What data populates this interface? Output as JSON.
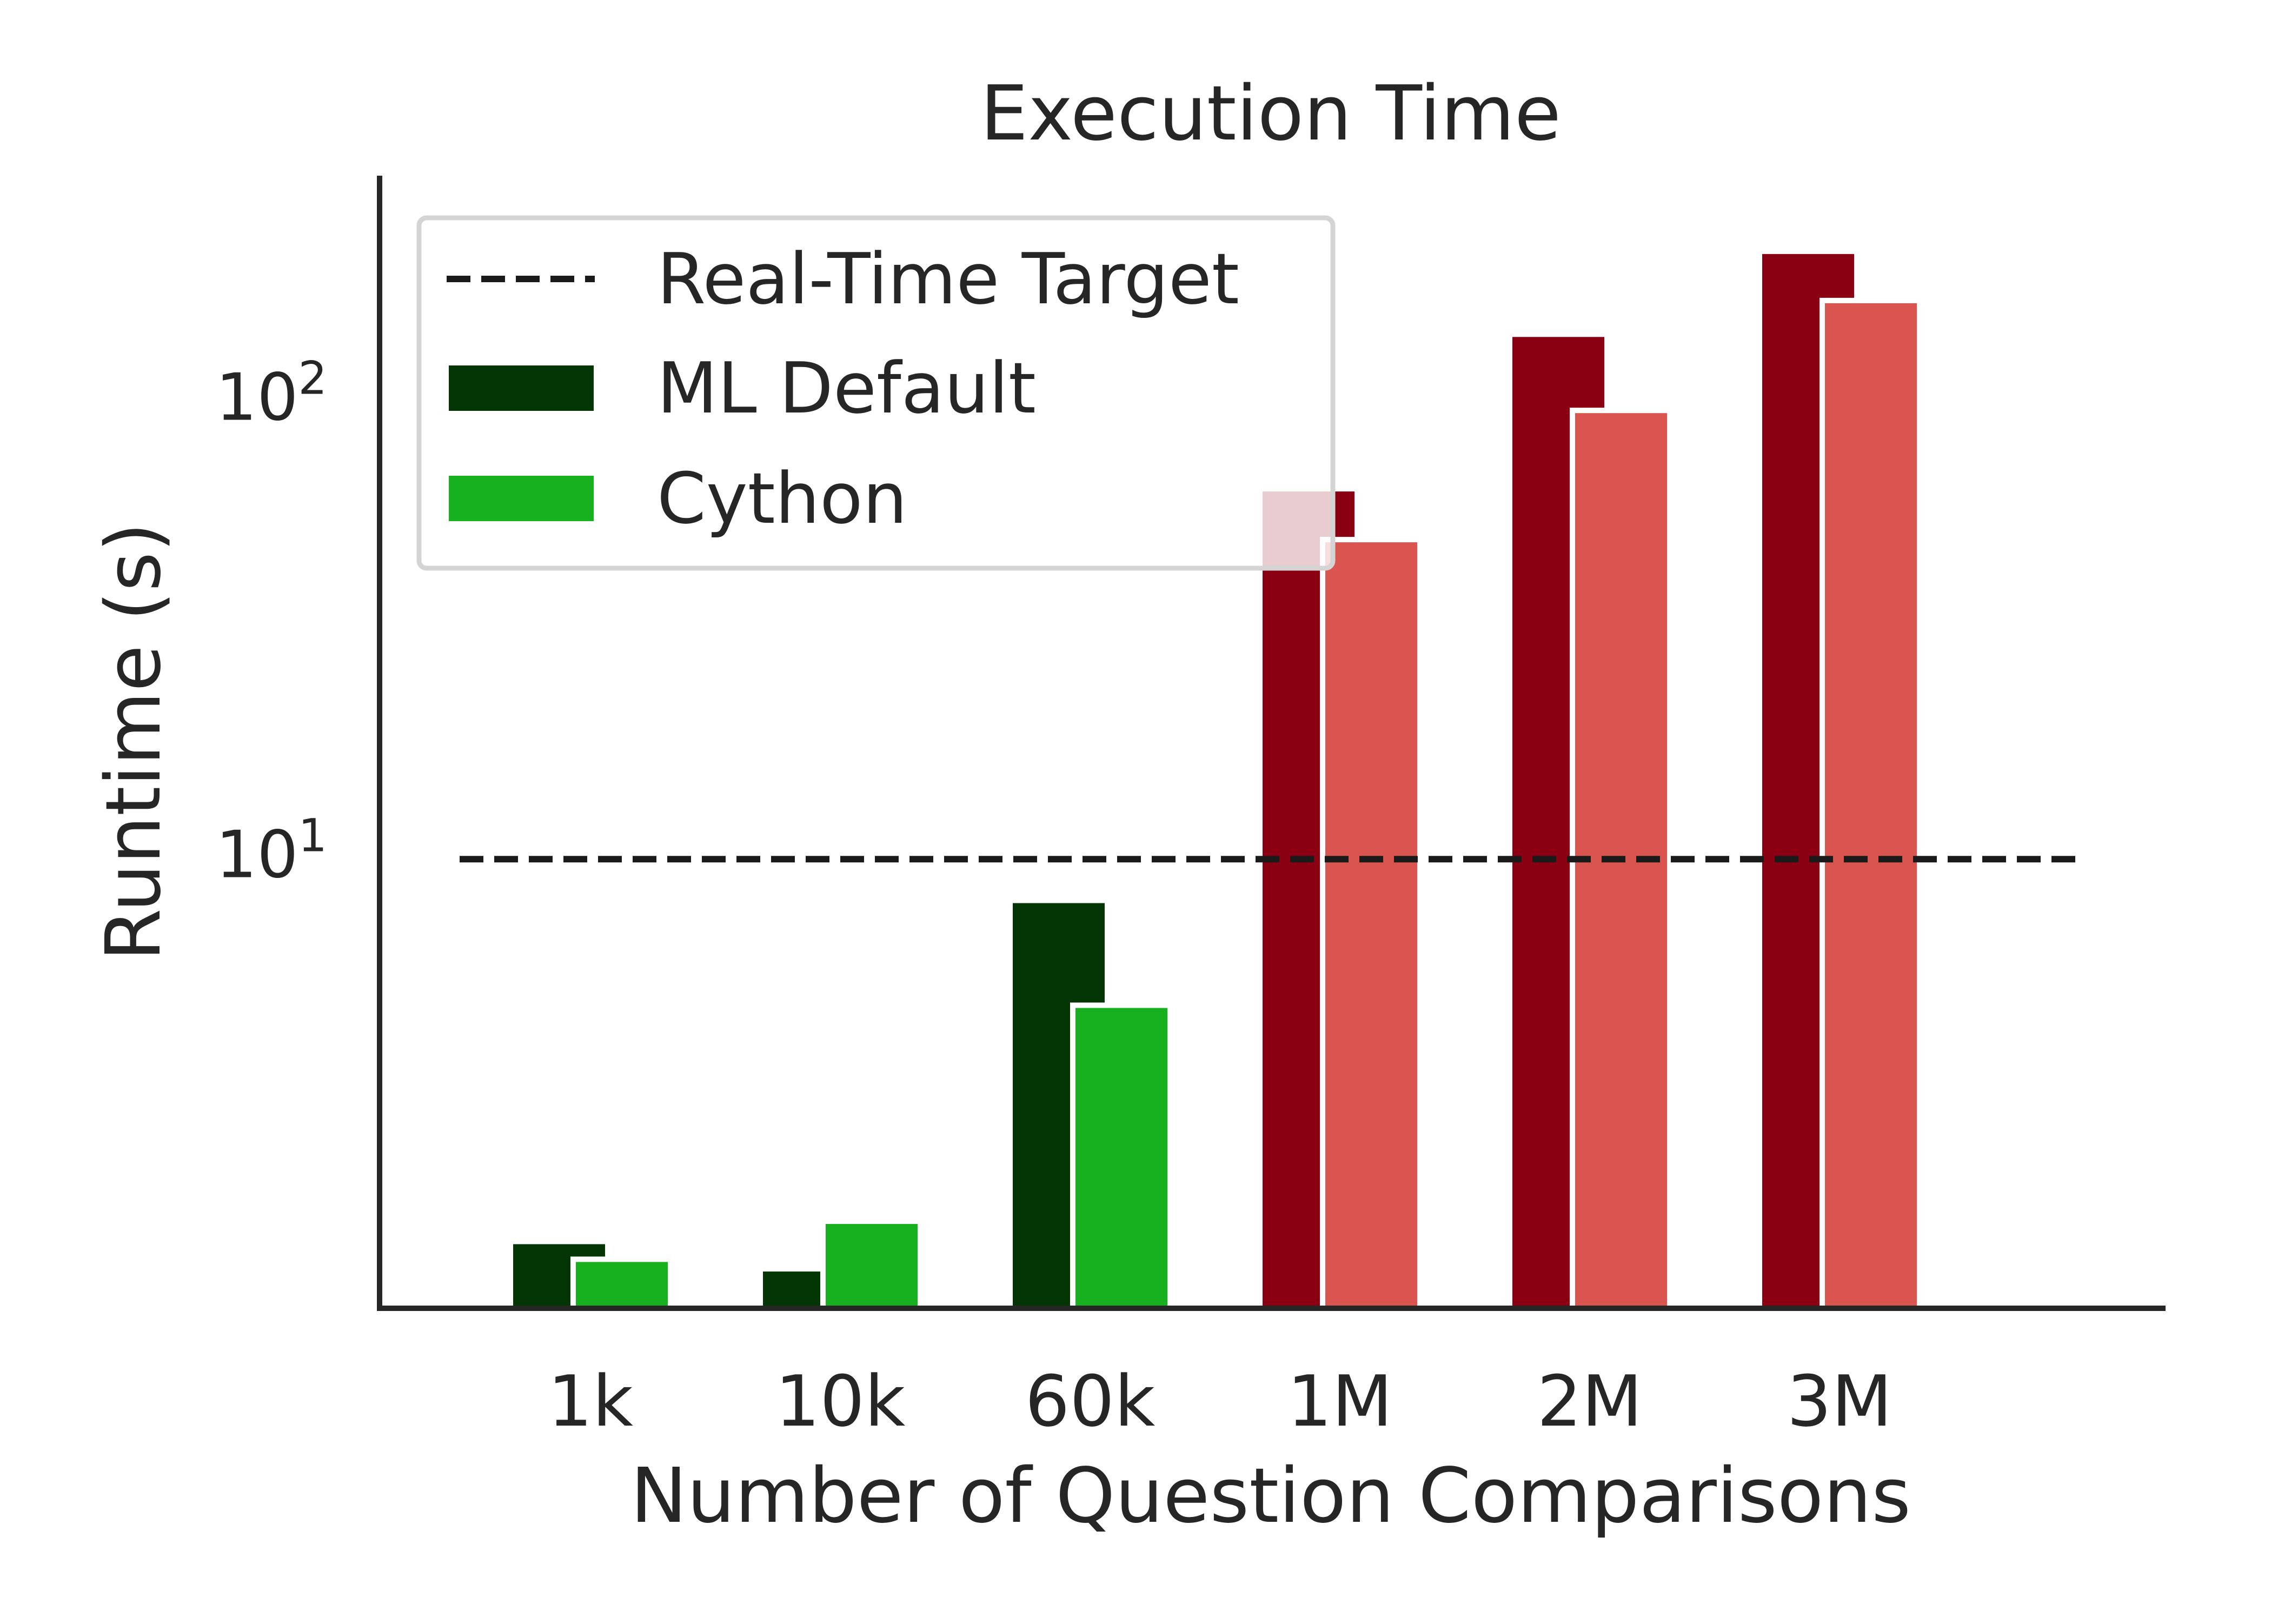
{
  "chart_data": {
    "type": "bar",
    "title": "Execution Time",
    "xlabel": "Number of Question Comparisons",
    "ylabel": "Runtime (s)",
    "yscale": "log",
    "ylim": [
      1.0,
      300.0
    ],
    "y_ticks": [
      {
        "value": 10,
        "base": "10",
        "exp": "1"
      },
      {
        "value": 100,
        "base": "10",
        "exp": "2"
      }
    ],
    "categories": [
      "1k",
      "10k",
      "60k",
      "1M",
      "2M",
      "3M"
    ],
    "series": [
      {
        "name": "ML Default",
        "values": [
          1.4,
          1.22,
          7.8,
          62.0,
          135.0,
          205.0
        ]
      },
      {
        "name": "Cython",
        "values": [
          1.28,
          1.55,
          4.6,
          48.0,
          92.0,
          160.0
        ]
      }
    ],
    "bar_colors": {
      "ML Default": [
        "#033604",
        "#033604",
        "#033604",
        "#8a0012",
        "#8a0012",
        "#8a0012"
      ],
      "Cython": [
        "#17b01f",
        "#17b01f",
        "#17b01f",
        "#db5550",
        "#db5550",
        "#db5550"
      ]
    },
    "reference_line": {
      "name": "Real-Time Target",
      "value": 9.6,
      "style": "dashed",
      "color": "#1a1a1a"
    },
    "legend": {
      "placement": "top-left",
      "entries": [
        {
          "label": "Real-Time Target",
          "kind": "dashed-line",
          "color": "#1a1a1a"
        },
        {
          "label": "ML Default",
          "kind": "patch",
          "color": "#033604"
        },
        {
          "label": "Cython",
          "kind": "patch",
          "color": "#17b01f"
        }
      ]
    },
    "grid": false
  }
}
